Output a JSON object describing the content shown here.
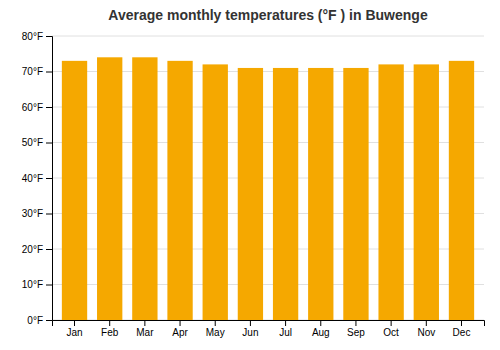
{
  "chart_data": {
    "type": "bar",
    "title": "Average monthly temperatures (°F ) in Buwenge",
    "categories": [
      "Jan",
      "Feb",
      "Mar",
      "Apr",
      "May",
      "Jun",
      "Jul",
      "Aug",
      "Sep",
      "Oct",
      "Nov",
      "Dec"
    ],
    "values": [
      73,
      74,
      74,
      73,
      72,
      71,
      71,
      71,
      71,
      72,
      72,
      73
    ],
    "color": "#F5A800",
    "ylim": [
      0,
      80
    ],
    "yticks": [
      {
        "value": 0,
        "label": "0°F"
      },
      {
        "value": 10,
        "label": "10°F"
      },
      {
        "value": 20,
        "label": "20°F"
      },
      {
        "value": 30,
        "label": "30°F"
      },
      {
        "value": 40,
        "label": "40°F"
      },
      {
        "value": 50,
        "label": "50°F"
      },
      {
        "value": 60,
        "label": "60°F"
      },
      {
        "value": 70,
        "label": "70°F"
      },
      {
        "value": 80,
        "label": "80°F"
      }
    ],
    "grid": true
  }
}
